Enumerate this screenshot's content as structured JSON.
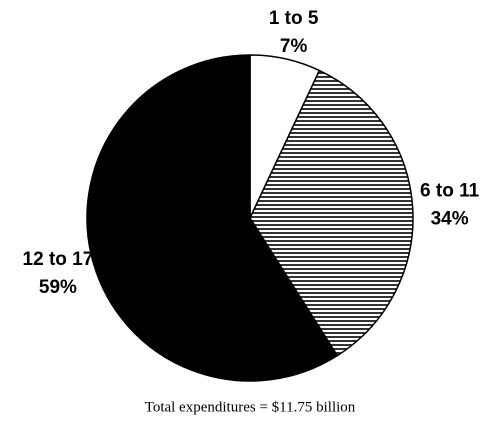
{
  "chart_data": {
    "type": "pie",
    "categories": [
      "1 to 5",
      "6 to 11",
      "12 to 17"
    ],
    "values": [
      7,
      34,
      59
    ],
    "value_labels": [
      "7%",
      "34%",
      "59%"
    ],
    "fills": [
      "white",
      "horizontal-hatch",
      "black"
    ],
    "note": "Total expenditures = $11.75 billion"
  }
}
